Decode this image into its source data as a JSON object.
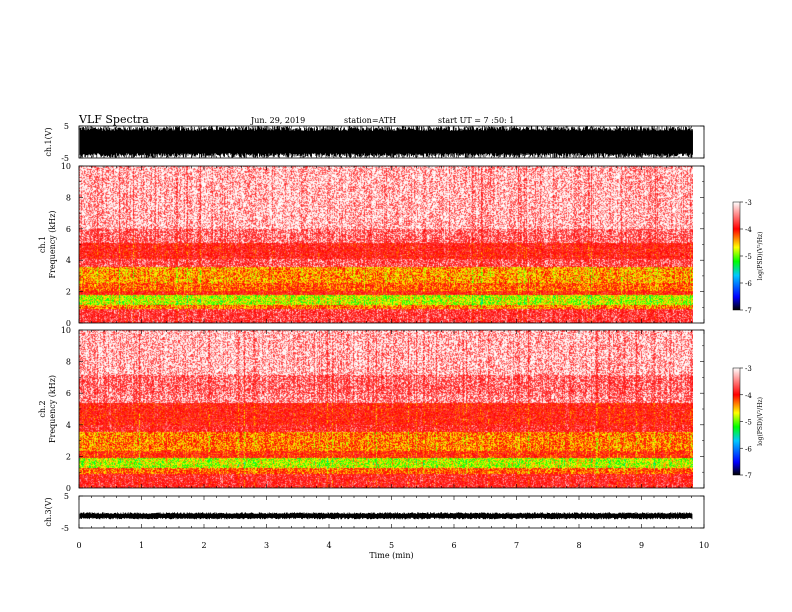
{
  "header": {
    "title": "VLF  Spectra",
    "date": "Jun. 29, 2019",
    "station": "station=ATH",
    "start": "start  UT  =   7  :50: 1"
  },
  "chart_data": [
    {
      "type": "line",
      "panel": "ch1-waveform",
      "ylabel": "ch.1(V)",
      "ylim": [
        -5,
        5
      ],
      "yticks": [
        "5",
        "-5"
      ],
      "x_range_min": [
        0,
        9.82
      ]
    },
    {
      "type": "heatmap",
      "panel": "ch1-spectrogram",
      "ylabel": "ch.1\nFrequency  (kHz)",
      "ylabel_line1": "ch.1",
      "ylabel_line2": "Frequency  (kHz)",
      "ylim": [
        0,
        10
      ],
      "yticks": [
        "0",
        "2",
        "4",
        "6",
        "8",
        "10"
      ],
      "x_range_min": [
        0,
        9.82
      ],
      "bands_khz": [
        {
          "from": 0.0,
          "to": 0.9,
          "level": -3.6
        },
        {
          "from": 0.9,
          "to": 1.2,
          "level": -4.3
        },
        {
          "from": 1.2,
          "to": 1.8,
          "level": -4.8
        },
        {
          "from": 1.8,
          "to": 2.1,
          "level": -3.9
        },
        {
          "from": 2.1,
          "to": 2.6,
          "level": -4.2
        },
        {
          "from": 2.6,
          "to": 3.6,
          "level": -4.4
        },
        {
          "from": 3.6,
          "to": 4.1,
          "level": -3.5
        },
        {
          "from": 4.1,
          "to": 5.1,
          "level": -3.8
        },
        {
          "from": 5.1,
          "to": 6.0,
          "level": -3.4
        },
        {
          "from": 6.0,
          "to": 10.0,
          "level": -3.15
        }
      ],
      "colorbar": {
        "label": "log(PSD)(V²/Hz)",
        "ticks": [
          "-3",
          "-4",
          "-5",
          "-6",
          "-7"
        ],
        "range": [
          -7,
          -3
        ]
      }
    },
    {
      "type": "heatmap",
      "panel": "ch2-spectrogram",
      "ylabel_line1": "ch.2",
      "ylabel_line2": "Frequency  (kHz)",
      "ylim": [
        0,
        10
      ],
      "yticks": [
        "0",
        "2",
        "4",
        "6",
        "8",
        "10"
      ],
      "x_range_min": [
        0,
        9.82
      ],
      "bands_khz": [
        {
          "from": 0.0,
          "to": 0.9,
          "level": -3.7
        },
        {
          "from": 0.9,
          "to": 1.3,
          "level": -4.2
        },
        {
          "from": 1.3,
          "to": 1.9,
          "level": -4.8
        },
        {
          "from": 1.9,
          "to": 2.4,
          "level": -4.0
        },
        {
          "from": 2.4,
          "to": 3.6,
          "level": -4.3
        },
        {
          "from": 3.6,
          "to": 4.0,
          "level": -3.7
        },
        {
          "from": 4.0,
          "to": 5.4,
          "level": -3.85
        },
        {
          "from": 5.4,
          "to": 6.0,
          "level": -3.3
        },
        {
          "from": 6.0,
          "to": 7.2,
          "level": -3.4
        },
        {
          "from": 7.2,
          "to": 10.0,
          "level": -3.15
        }
      ],
      "colorbar": {
        "label": "log(PSD)(V²/Hz)",
        "ticks": [
          "-3",
          "-4",
          "-5",
          "-6",
          "-7"
        ],
        "range": [
          -7,
          -3
        ]
      }
    },
    {
      "type": "line",
      "panel": "ch3-waveform",
      "ylabel": "ch.3(V)",
      "ylim": [
        -5,
        5
      ],
      "yticks": [
        "5",
        "-5"
      ],
      "level_v": -1.2,
      "x_range_min": [
        0,
        9.82
      ]
    }
  ],
  "xaxis": {
    "label": "Time  (min)",
    "ticks": [
      "0",
      "1",
      "2",
      "3",
      "4",
      "5",
      "6",
      "7",
      "8",
      "9",
      "10"
    ],
    "range": [
      0,
      10
    ]
  },
  "colors": {
    "scale": [
      "#000000",
      "#0000ff",
      "#00c8ff",
      "#00ff00",
      "#ffff00",
      "#ff0000",
      "#ffffff"
    ]
  }
}
